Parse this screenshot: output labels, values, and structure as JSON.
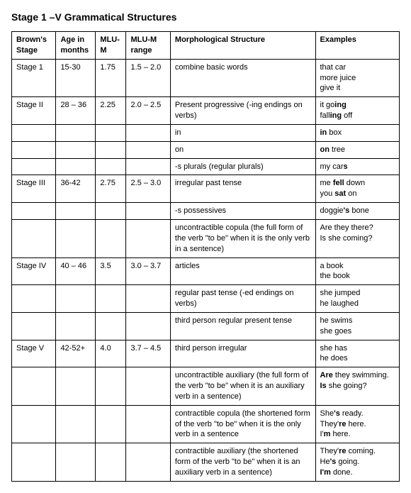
{
  "title": "Stage 1 –V Grammatical Structures",
  "headers": {
    "c1": "Brown's Stage",
    "c2": "Age in months",
    "c3": "MLU-M",
    "c4": "MLU-M range",
    "c5": "Morphological Structure",
    "c6": "Examples"
  },
  "rows": [
    {
      "c1": "Stage 1",
      "c2": "15-30",
      "c3": "1.75",
      "c4": "1.5 – 2.0",
      "c5": "combine basic words",
      "c6_html": "that car<br>more juice<br>give it"
    },
    {
      "c1": "Stage II",
      "c2": "28 – 36",
      "c3": "2.25",
      "c4": "2.0 – 2.5",
      "c5": "Present progressive (-ing endings on verbs)",
      "c6_html": "it go<b>ing</b><br>fall<b>ing</b> off"
    },
    {
      "c1": "",
      "c2": "",
      "c3": "",
      "c4": "",
      "c5": "in",
      "c6_html": "<b>in</b> box"
    },
    {
      "c1": "",
      "c2": "",
      "c3": "",
      "c4": "",
      "c5": "on",
      "c6_html": "<b>on</b> tree"
    },
    {
      "c1": "",
      "c2": "",
      "c3": "",
      "c4": "",
      "c5": "-s plurals (regular plurals)",
      "c6_html": "my car<b>s</b>"
    },
    {
      "c1": "Stage III",
      "c2": "36-42",
      "c3": "2.75",
      "c4": "2.5 – 3.0",
      "c5": "irregular past tense",
      "c6_html": "me <b>fell</b> down<br>you <b>sat</b> on"
    },
    {
      "c1": "",
      "c2": "",
      "c3": "",
      "c4": "",
      "c5": "-s possessives",
      "c6_html": "doggie<b>'s</b> bone"
    },
    {
      "c1": "",
      "c2": "",
      "c3": "",
      "c4": "",
      "c5": "uncontractible copula (the full form of the verb \"to be\" when it is the only verb in a sentence)",
      "c6_html": "Are they there?<br>Is she coming?"
    },
    {
      "c1": "Stage IV",
      "c2": "40 – 46",
      "c3": "3.5",
      "c4": "3.0 – 3.7",
      "c5": "articles",
      "c6_html": "a book<br>the book"
    },
    {
      "c1": "",
      "c2": "",
      "c3": "",
      "c4": "",
      "c5": "regular past tense (-ed endings on verbs)",
      "c6_html": "she jumped<br>he laughed"
    },
    {
      "c1": "",
      "c2": "",
      "c3": "",
      "c4": "",
      "c5": "third person regular present tense",
      "c6_html": "he swims<br>she goes"
    },
    {
      "c1": "Stage V",
      "c2": "42-52+",
      "c3": "4.0",
      "c4": "3.7 – 4.5",
      "c5": "third person irregular",
      "c6_html": "she has<br>he does"
    },
    {
      "c1": "",
      "c2": "",
      "c3": "",
      "c4": "",
      "c5": "uncontractible auxiliary (the full form of the verb \"to be\" when it is an auxiliary verb in a sentence)",
      "c6_html": "<b>Are</b> they swimming.<br><b>Is</b> she going?"
    },
    {
      "c1": "",
      "c2": "",
      "c3": "",
      "c4": "",
      "c5": "contractible copula (the shortened form of the verb \"to be\" when it is the only verb in a sentence",
      "c6_html": "She<b>'s</b> ready.<br>They'<b>re</b> here.<br>I'<b>m</b> here."
    },
    {
      "c1": "",
      "c2": "",
      "c3": "",
      "c4": "",
      "c5": "contractible auxiliary (the shortened form of the verb \"to be\" when it is an auxiliary verb in a sentence)",
      "c6_html": "They'<b>re</b> coming.<br>He<b>'s</b> going.<br><b>I'm</b> done."
    }
  ]
}
